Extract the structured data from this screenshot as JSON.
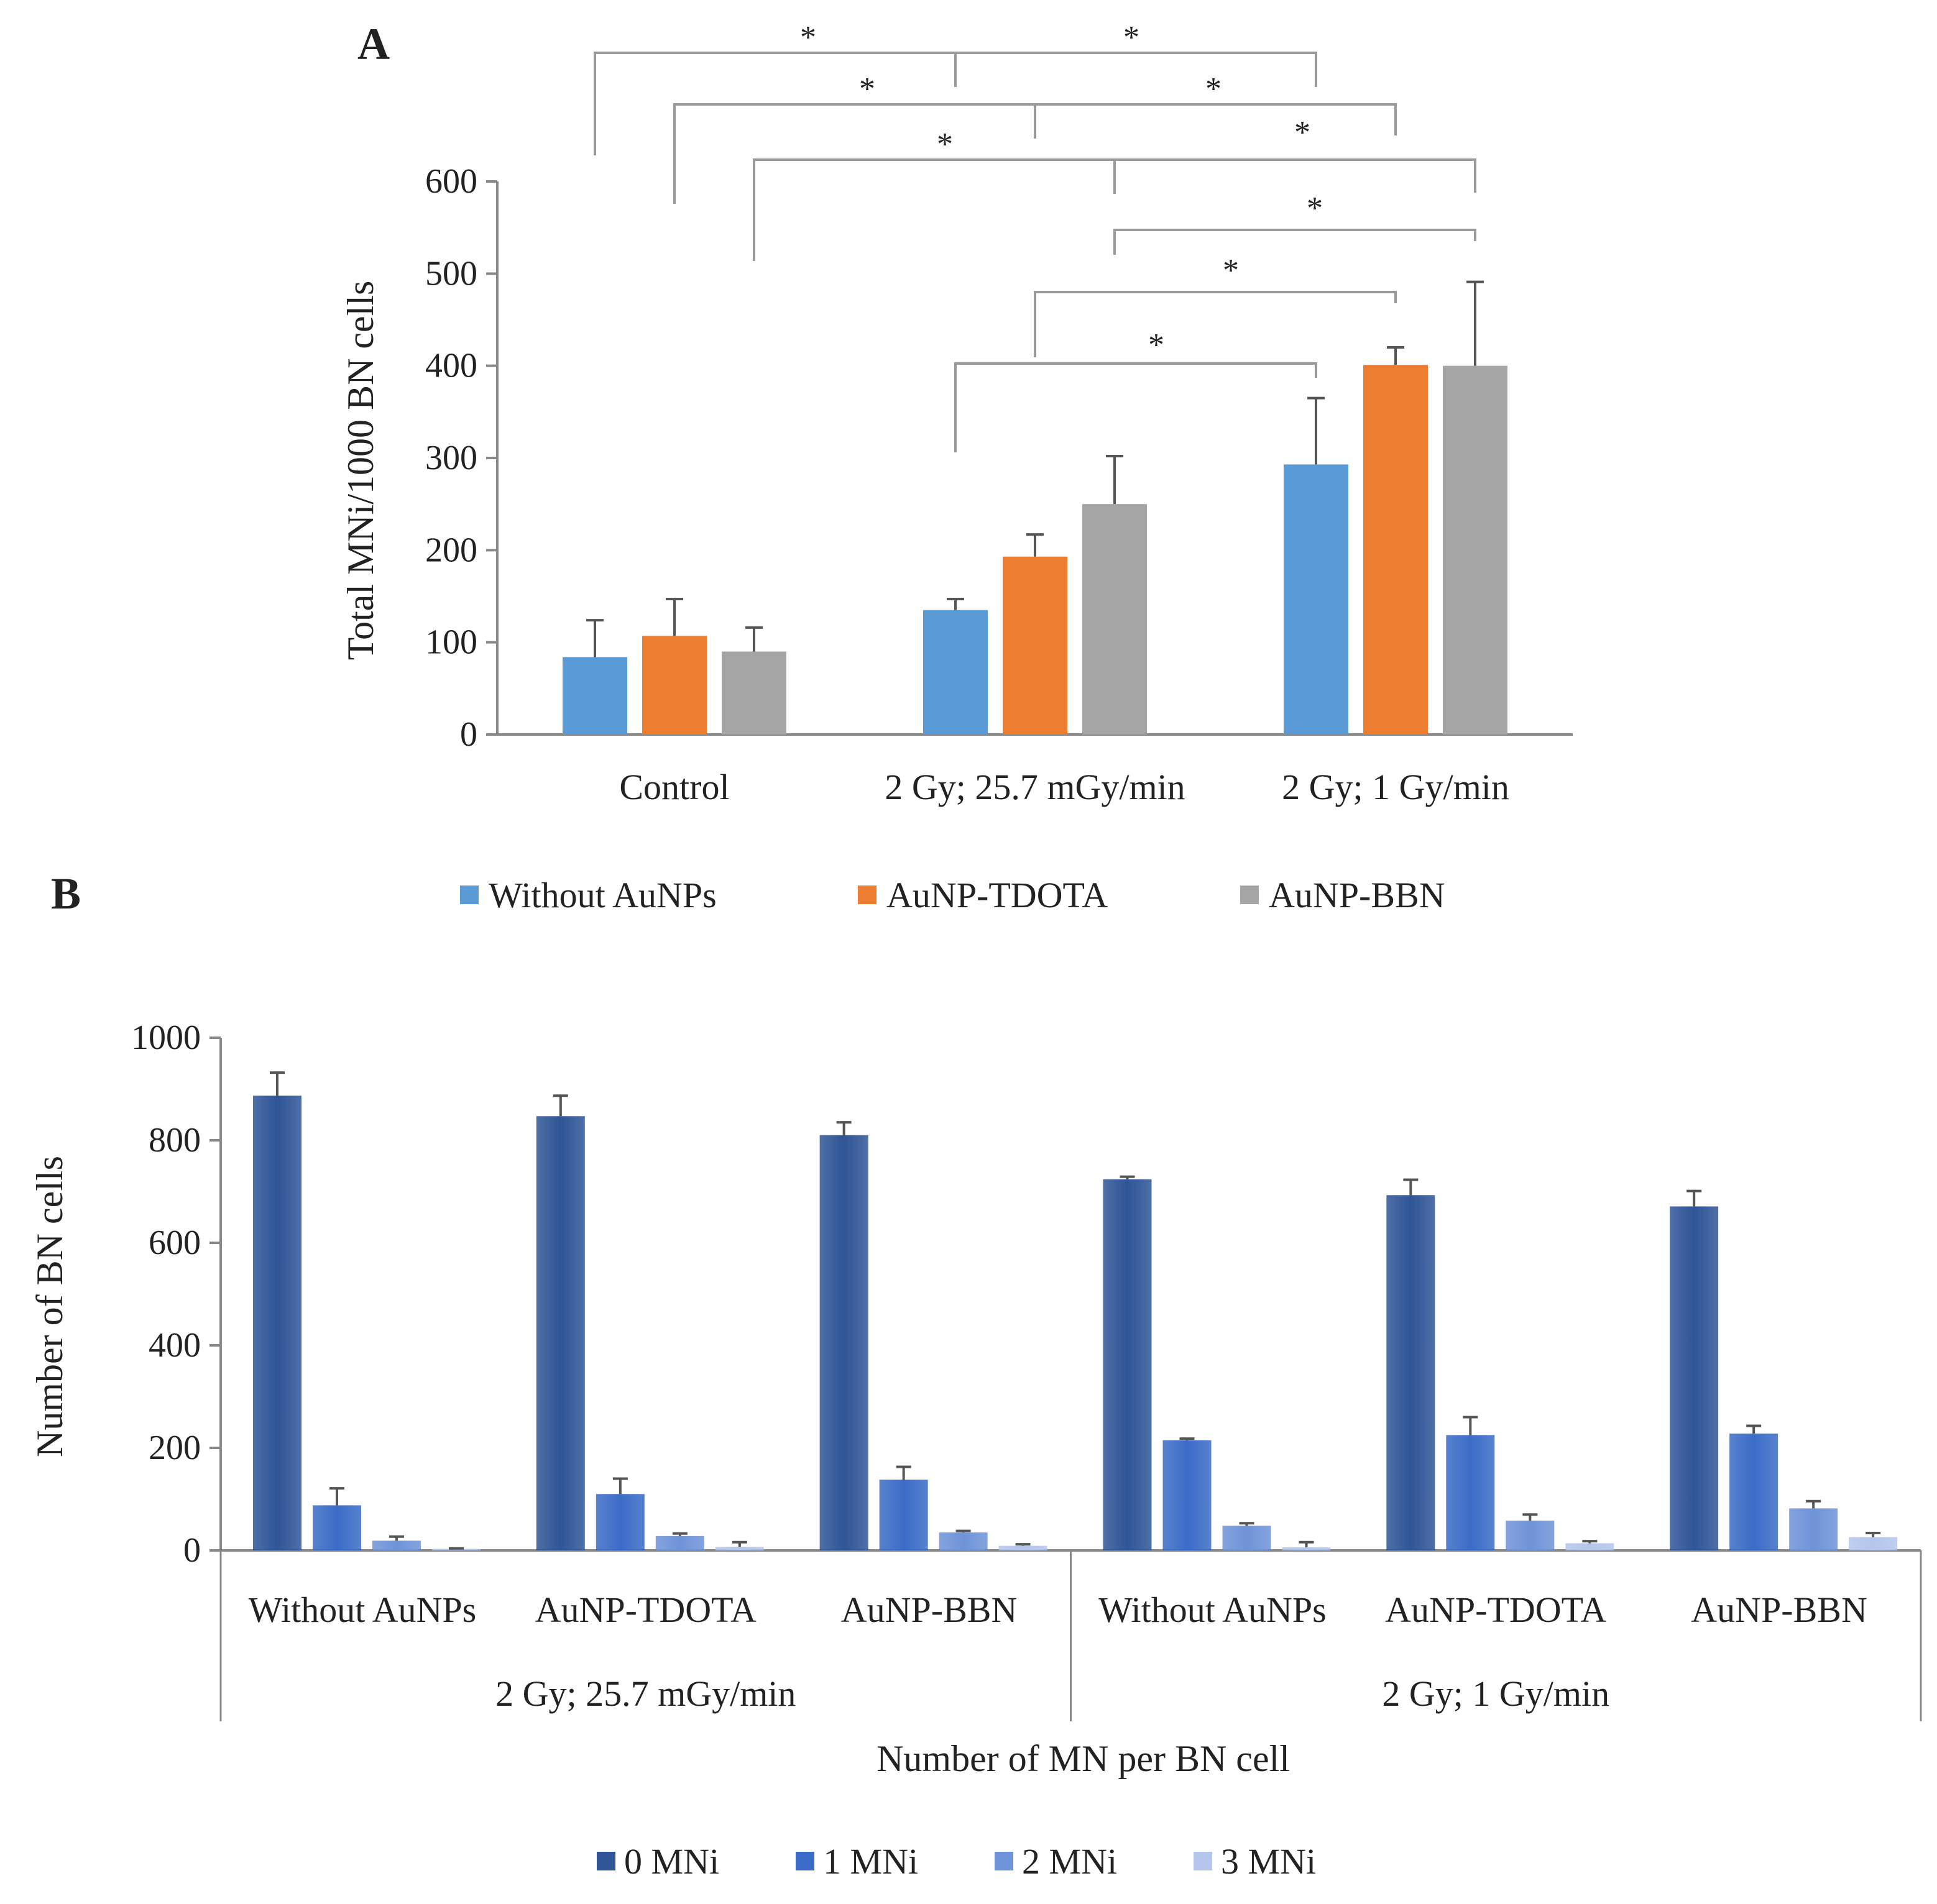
{
  "panels": {
    "a_label": "A",
    "b_label": "B"
  },
  "colors": {
    "blue": "#5b9bd5",
    "orange": "#ed7d31",
    "gray": "#a5a5a5",
    "axis": "#888888",
    "bracket": "#9a9a9a",
    "mn0": "#2f5597",
    "mn1": "#3b6cc7",
    "mn2": "#6f93d8",
    "mn3": "#b4c6ec"
  },
  "chart_data": [
    {
      "type": "bar",
      "panel": "A",
      "title": "",
      "xlabel": "",
      "ylabel": "Total MNi/1000 BN cells",
      "ylim": [
        0,
        600
      ],
      "yticks": [
        0,
        100,
        200,
        300,
        400,
        500,
        600
      ],
      "categories": [
        "Control",
        "2 Gy; 25.7 mGy/min",
        "2 Gy; 1 Gy/min"
      ],
      "series": [
        {
          "name": "Without AuNPs",
          "color": "#5b9bd5",
          "values": [
            84,
            135,
            293
          ],
          "errors": [
            40,
            12,
            72
          ]
        },
        {
          "name": "AuNP-TDOTA",
          "color": "#ed7d31",
          "values": [
            107,
            193,
            401
          ],
          "errors": [
            40,
            24,
            19
          ]
        },
        {
          "name": "AuNP-BBN",
          "color": "#a5a5a5",
          "values": [
            90,
            250,
            400
          ],
          "errors": [
            26,
            52,
            91
          ]
        }
      ],
      "significance": [
        {
          "label": "*",
          "left": [
            0,
            0
          ],
          "right": [
            2,
            0
          ]
        },
        {
          "label": "*",
          "left": [
            0,
            1
          ],
          "right": [
            2,
            1
          ]
        },
        {
          "label": "*",
          "left": [
            0,
            2
          ],
          "right": [
            2,
            2
          ]
        },
        {
          "label": "*",
          "left": [
            1,
            2
          ],
          "right": [
            2,
            2
          ]
        },
        {
          "label": "*",
          "left": [
            1,
            1
          ],
          "right": [
            2,
            1
          ]
        },
        {
          "label": "*",
          "left": [
            1,
            0
          ],
          "right": [
            2,
            0
          ]
        }
      ],
      "legend": [
        "Without AuNPs",
        "AuNP-TDOTA",
        "AuNP-BBN"
      ],
      "legend_position": "bottom",
      "grid": false
    },
    {
      "type": "bar",
      "panel": "B",
      "title": "",
      "xlabel": "Number of MN per BN cell",
      "ylabel": "Number of BN cells",
      "ylim": [
        0,
        1000
      ],
      "yticks": [
        0,
        200,
        400,
        600,
        800,
        1000
      ],
      "groups": [
        {
          "label": "2 Gy; 25.7 mGy/min",
          "categories": [
            "Without AuNPs",
            "AuNP-TDOTA",
            "AuNP-BBN"
          ]
        },
        {
          "label": "2 Gy; 1 Gy/min",
          "categories": [
            "Without AuNPs",
            "AuNP-TDOTA",
            "AuNP-BBN"
          ]
        }
      ],
      "series": [
        {
          "name": "0 MNi",
          "color": "#2f5597",
          "values": [
            887,
            847,
            810,
            724,
            693,
            671
          ],
          "errors": [
            45,
            40,
            25,
            5,
            30,
            30
          ]
        },
        {
          "name": "1 MNi",
          "color": "#3b6cc7",
          "values": [
            88,
            110,
            138,
            215,
            225,
            228
          ],
          "errors": [
            33,
            30,
            25,
            3,
            35,
            15
          ]
        },
        {
          "name": "2 MNi",
          "color": "#6f93d8",
          "values": [
            19,
            28,
            35,
            48,
            58,
            82
          ],
          "errors": [
            8,
            5,
            3,
            5,
            12,
            14
          ]
        },
        {
          "name": "3 MNi",
          "color": "#b4c6ec",
          "values": [
            3,
            7,
            9,
            6,
            14,
            26
          ],
          "errors": [
            1,
            9,
            3,
            10,
            4,
            8
          ]
        }
      ],
      "legend": [
        "0 MNi",
        "1 MNi",
        "2 MNi",
        "3 MNi"
      ],
      "legend_position": "bottom",
      "grid": false
    }
  ]
}
